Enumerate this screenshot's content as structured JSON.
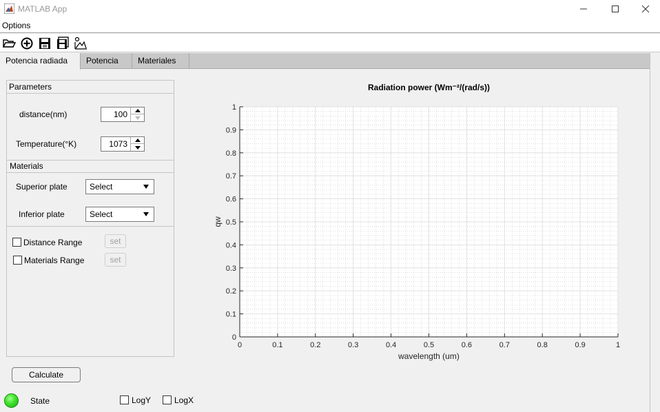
{
  "window": {
    "title": "MATLAB App",
    "minimize_glyph": "—",
    "maximize_glyph": "☐",
    "close_glyph": "✕"
  },
  "menu": {
    "items": [
      "Options"
    ]
  },
  "toolbar": {
    "icons": [
      "open-folder-icon",
      "add-circle-icon",
      "save-icon",
      "save-all-icon",
      "plot-tool-icon"
    ]
  },
  "tabs": [
    {
      "label": "Potencia radiada",
      "active": true
    },
    {
      "label": "Potencia",
      "active": false
    },
    {
      "label": "Materiales",
      "active": false
    }
  ],
  "parameters": {
    "title": "Parameters",
    "distance": {
      "label": "distance(nm)",
      "value": "100"
    },
    "temperature": {
      "label": "Temperature(°K)",
      "value": "1073"
    }
  },
  "materials": {
    "title": "Materials",
    "superior": {
      "label": "Superior plate",
      "value": "Select"
    },
    "inferior": {
      "label": "Inferior plate",
      "value": "Select"
    }
  },
  "ranges": {
    "distance": {
      "label": "Distance Range",
      "checked": false,
      "button": "set"
    },
    "materials": {
      "label": "Materials Range",
      "checked": false,
      "button": "set"
    }
  },
  "calculate_label": "Calculate",
  "state_label": "State",
  "state_color": "#3ee12a",
  "log_y_label": "LogY",
  "log_x_label": "LogX",
  "chart_data": {
    "type": "line",
    "title": "Radiation power (Wm⁻²/(rad/s))",
    "xlabel": "wavelength (um)",
    "ylabel": "qw",
    "xlim": [
      0,
      1
    ],
    "ylim": [
      0,
      1
    ],
    "xticks": [
      "0",
      "0.1",
      "0.2",
      "0.3",
      "0.4",
      "0.5",
      "0.6",
      "0.7",
      "0.8",
      "0.9",
      "1"
    ],
    "yticks": [
      "0",
      "0.1",
      "0.2",
      "0.3",
      "0.4",
      "0.5",
      "0.6",
      "0.7",
      "0.8",
      "0.9",
      "1"
    ],
    "grid": true,
    "minor_grid": true,
    "series": []
  }
}
